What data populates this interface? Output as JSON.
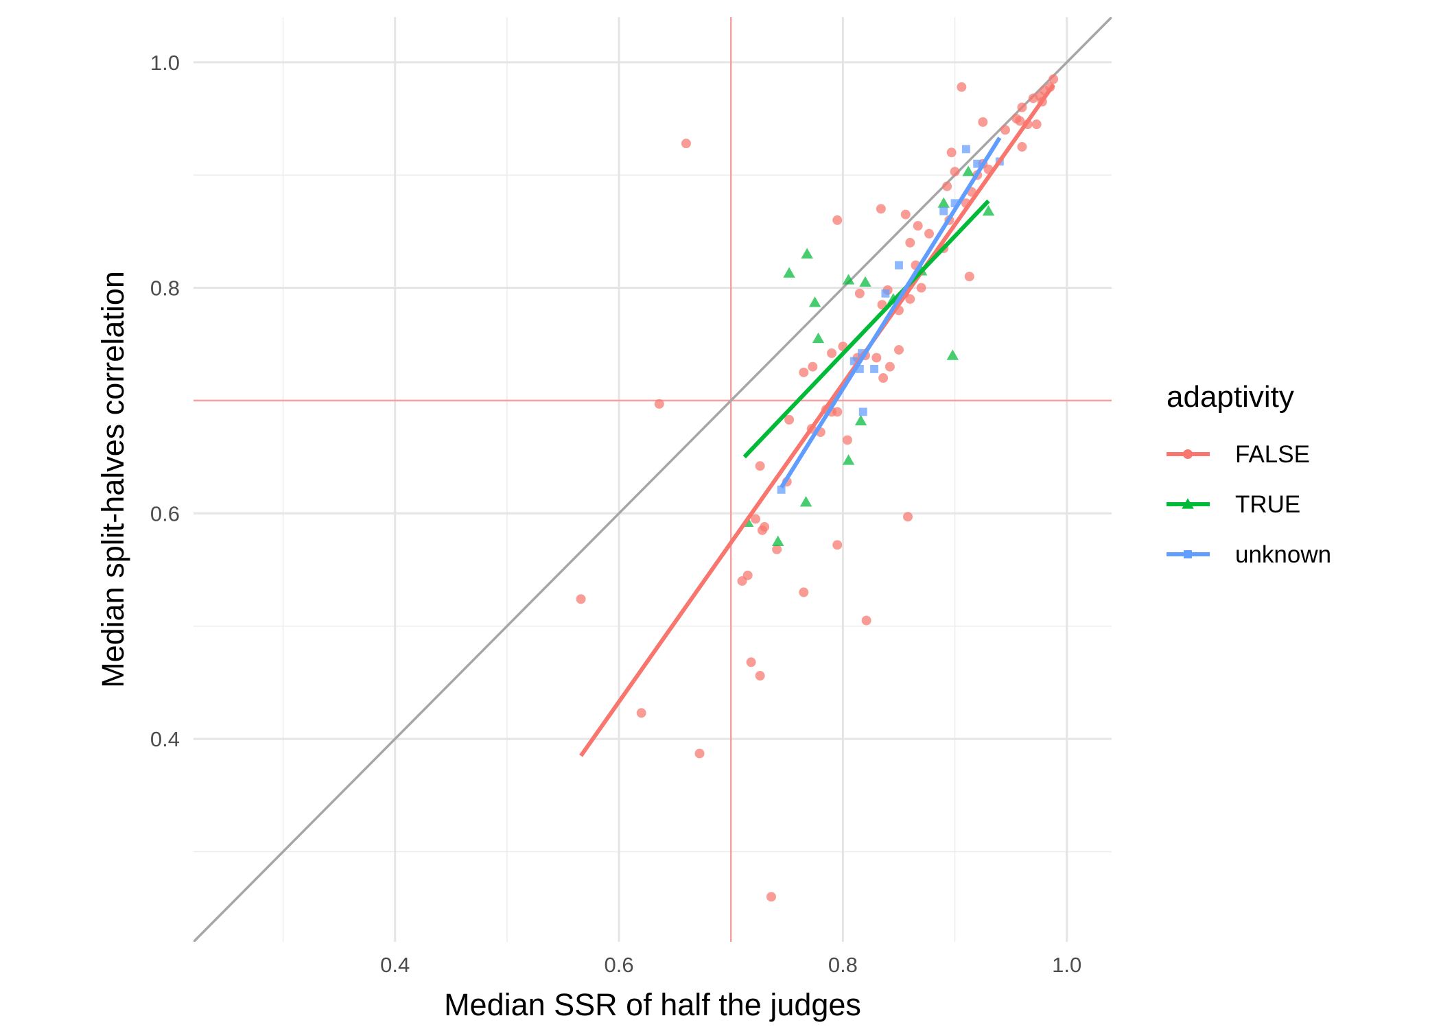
{
  "chart_data": {
    "type": "scatter",
    "xlabel": "Median SSR of half the judges",
    "ylabel": "Median split-halves correlation",
    "xlim": [
      0.22,
      1.04
    ],
    "ylim": [
      0.22,
      1.04
    ],
    "x_ticks": [
      0.4,
      0.6,
      0.8,
      1.0
    ],
    "x_tick_labels": [
      "0.4",
      "0.6",
      "0.8",
      "1.0"
    ],
    "y_ticks": [
      0.4,
      0.6,
      0.8,
      1.0
    ],
    "y_tick_labels": [
      "0.4",
      "0.6",
      "0.8",
      "1.0"
    ],
    "grid": true,
    "reference_lines": {
      "identity": {
        "from": [
          0.22,
          0.22
        ],
        "to": [
          1.04,
          1.04
        ],
        "color": "#a6a6a6"
      },
      "vline_x": 0.7,
      "hline_y": 0.7,
      "threshold_color": "#f8a0a0"
    },
    "legend": {
      "title": "adaptivity",
      "position": "right",
      "entries": [
        {
          "label": "FALSE",
          "marker": "circle",
          "color": "#F8766D"
        },
        {
          "label": "TRUE",
          "marker": "triangle",
          "color": "#00BA38"
        },
        {
          "label": "unknown",
          "marker": "square",
          "color": "#619CFF"
        }
      ]
    },
    "series": [
      {
        "name": "FALSE",
        "marker": "circle",
        "color": "#F8766D",
        "fit": [
          [
            0.566,
            0.385
          ],
          [
            0.988,
            0.98
          ]
        ],
        "points": [
          [
            0.66,
            0.928
          ],
          [
            0.906,
            0.978
          ],
          [
            0.636,
            0.697
          ],
          [
            0.566,
            0.524
          ],
          [
            0.62,
            0.423
          ],
          [
            0.672,
            0.387
          ],
          [
            0.736,
            0.26
          ],
          [
            0.718,
            0.468
          ],
          [
            0.726,
            0.456
          ],
          [
            0.765,
            0.53
          ],
          [
            0.821,
            0.505
          ],
          [
            0.71,
            0.54
          ],
          [
            0.715,
            0.545
          ],
          [
            0.722,
            0.595
          ],
          [
            0.728,
            0.585
          ],
          [
            0.73,
            0.588
          ],
          [
            0.741,
            0.568
          ],
          [
            0.795,
            0.572
          ],
          [
            0.858,
            0.597
          ],
          [
            0.726,
            0.642
          ],
          [
            0.75,
            0.628
          ],
          [
            0.752,
            0.683
          ],
          [
            0.772,
            0.675
          ],
          [
            0.78,
            0.672
          ],
          [
            0.785,
            0.692
          ],
          [
            0.79,
            0.69
          ],
          [
            0.795,
            0.69
          ],
          [
            0.804,
            0.665
          ],
          [
            0.765,
            0.725
          ],
          [
            0.773,
            0.73
          ],
          [
            0.79,
            0.742
          ],
          [
            0.8,
            0.748
          ],
          [
            0.813,
            0.738
          ],
          [
            0.82,
            0.74
          ],
          [
            0.83,
            0.738
          ],
          [
            0.836,
            0.72
          ],
          [
            0.842,
            0.73
          ],
          [
            0.85,
            0.745
          ],
          [
            0.795,
            0.86
          ],
          [
            0.834,
            0.87
          ],
          [
            0.856,
            0.865
          ],
          [
            0.815,
            0.795
          ],
          [
            0.835,
            0.785
          ],
          [
            0.84,
            0.798
          ],
          [
            0.85,
            0.78
          ],
          [
            0.855,
            0.795
          ],
          [
            0.86,
            0.79
          ],
          [
            0.865,
            0.82
          ],
          [
            0.87,
            0.8
          ],
          [
            0.86,
            0.84
          ],
          [
            0.867,
            0.855
          ],
          [
            0.877,
            0.848
          ],
          [
            0.89,
            0.835
          ],
          [
            0.893,
            0.89
          ],
          [
            0.897,
            0.92
          ],
          [
            0.9,
            0.903
          ],
          [
            0.895,
            0.86
          ],
          [
            0.91,
            0.875
          ],
          [
            0.913,
            0.81
          ],
          [
            0.915,
            0.885
          ],
          [
            0.92,
            0.9
          ],
          [
            0.925,
            0.91
          ],
          [
            0.925,
            0.947
          ],
          [
            0.93,
            0.905
          ],
          [
            0.945,
            0.94
          ],
          [
            0.955,
            0.95
          ],
          [
            0.96,
            0.96
          ],
          [
            0.96,
            0.925
          ],
          [
            0.965,
            0.945
          ],
          [
            0.97,
            0.968
          ],
          [
            0.973,
            0.945
          ],
          [
            0.976,
            0.97
          ],
          [
            0.978,
            0.965
          ],
          [
            0.98,
            0.975
          ],
          [
            0.985,
            0.978
          ],
          [
            0.988,
            0.985
          ],
          [
            0.958,
            0.948
          ]
        ]
      },
      {
        "name": "TRUE",
        "marker": "triangle",
        "color": "#00BA38",
        "fit": [
          [
            0.712,
            0.65
          ],
          [
            0.93,
            0.877
          ]
        ],
        "points": [
          [
            0.715,
            0.592
          ],
          [
            0.742,
            0.575
          ],
          [
            0.767,
            0.61
          ],
          [
            0.752,
            0.813
          ],
          [
            0.768,
            0.83
          ],
          [
            0.775,
            0.787
          ],
          [
            0.778,
            0.755
          ],
          [
            0.805,
            0.807
          ],
          [
            0.805,
            0.647
          ],
          [
            0.816,
            0.682
          ],
          [
            0.82,
            0.805
          ],
          [
            0.845,
            0.79
          ],
          [
            0.87,
            0.815
          ],
          [
            0.89,
            0.875
          ],
          [
            0.898,
            0.74
          ],
          [
            0.912,
            0.903
          ],
          [
            0.93,
            0.868
          ]
        ]
      },
      {
        "name": "unknown",
        "marker": "square",
        "color": "#619CFF",
        "fit": [
          [
            0.745,
            0.623
          ],
          [
            0.94,
            0.933
          ]
        ],
        "points": [
          [
            0.745,
            0.621
          ],
          [
            0.81,
            0.735
          ],
          [
            0.815,
            0.728
          ],
          [
            0.817,
            0.742
          ],
          [
            0.818,
            0.69
          ],
          [
            0.828,
            0.728
          ],
          [
            0.838,
            0.795
          ],
          [
            0.85,
            0.82
          ],
          [
            0.89,
            0.868
          ],
          [
            0.9,
            0.875
          ],
          [
            0.91,
            0.923
          ],
          [
            0.92,
            0.91
          ],
          [
            0.94,
            0.912
          ]
        ]
      }
    ]
  }
}
